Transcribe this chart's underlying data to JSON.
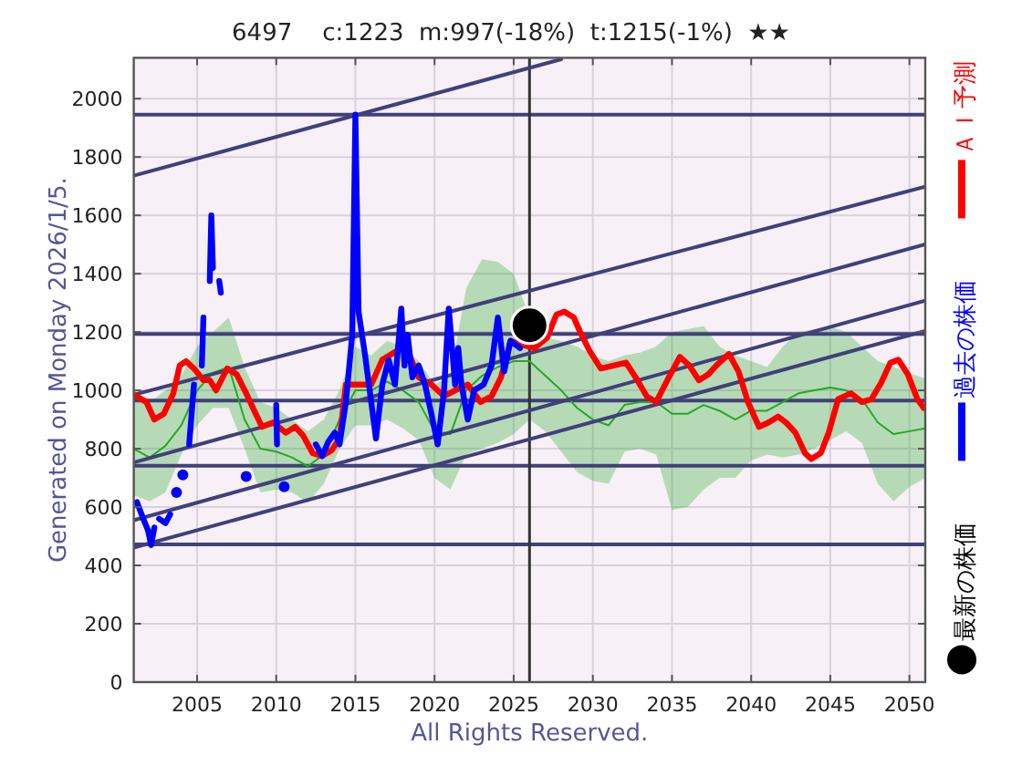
{
  "chart_data": {
    "type": "line",
    "title": "6497    c:1223  m:997(-18%)  t:1215(-1%)  ★★",
    "ylabel": "Generated on Monday 2026/1/5.",
    "annotations": [
      "All Rights Reserved."
    ],
    "xlim": [
      2001,
      2051
    ],
    "xticks": [
      2005,
      2010,
      2015,
      2020,
      2025,
      2030,
      2035,
      2040,
      2045,
      2050
    ],
    "ylim": [
      0,
      2140
    ],
    "yticks": [
      0,
      200,
      400,
      600,
      800,
      1000,
      1200,
      1400,
      1600,
      1800,
      2000
    ],
    "grid": true,
    "legend": "right",
    "ref_lines": [
      {
        "axis": "y",
        "value": 1945,
        "color": "#40407a"
      },
      {
        "axis": "y",
        "value": 1193,
        "color": "#40407a"
      },
      {
        "axis": "y",
        "value": 965,
        "color": "#40407a"
      },
      {
        "axis": "y",
        "value": 742,
        "color": "#40407a"
      },
      {
        "axis": "y",
        "value": 472,
        "color": "#40407a"
      },
      {
        "axis": "x",
        "value": 2026,
        "color": "#333333"
      }
    ],
    "series": [
      {
        "color": "#22aa22",
        "x": [
          2001,
          2002,
          2003,
          2004,
          2005,
          2006,
          2007,
          2008,
          2009,
          2010,
          2011,
          2012,
          2013,
          2014,
          2015,
          2016,
          2017,
          2018,
          2019,
          2020,
          2021,
          2022,
          2023,
          2024,
          2025,
          2026,
          2027,
          2028,
          2029,
          2030,
          2031,
          2032,
          2033,
          2034,
          2035,
          2036,
          2037,
          2038,
          2039,
          2040,
          2041,
          2042,
          2043,
          2044,
          2045,
          2046,
          2047,
          2048,
          2049,
          2050,
          2051
        ],
        "values": [
          800,
          770,
          810,
          880,
          1000,
          1060,
          1080,
          900,
          800,
          790,
          770,
          740,
          780,
          900,
          1000,
          1000,
          1030,
          1000,
          960,
          860,
          850,
          1000,
          1050,
          1080,
          1100,
          1100,
          1050,
          1000,
          940,
          900,
          880,
          950,
          960,
          960,
          920,
          920,
          950,
          930,
          900,
          930,
          930,
          960,
          990,
          1000,
          1010,
          1000,
          970,
          890,
          850,
          860,
          870
        ],
        "lower": [
          640,
          620,
          650,
          780,
          880,
          940,
          940,
          800,
          650,
          660,
          650,
          615,
          680,
          800,
          880,
          880,
          900,
          870,
          830,
          700,
          660,
          780,
          800,
          820,
          850,
          900,
          860,
          790,
          720,
          690,
          680,
          790,
          800,
          780,
          590,
          600,
          660,
          700,
          700,
          760,
          780,
          770,
          780,
          800,
          830,
          860,
          820,
          680,
          620,
          670,
          700
        ],
        "upper": [
          1000,
          960,
          1000,
          1050,
          1150,
          1200,
          1250,
          1080,
          960,
          940,
          900,
          860,
          900,
          1000,
          1150,
          1120,
          1170,
          1150,
          1100,
          1020,
          1050,
          1350,
          1450,
          1440,
          1400,
          1250,
          1180,
          1170,
          1150,
          1120,
          1100,
          1120,
          1130,
          1150,
          1200,
          1210,
          1220,
          1150,
          1120,
          1100,
          1080,
          1150,
          1200,
          1210,
          1220,
          1200,
          1150,
          1100,
          1080,
          1060,
          1040
        ]
      },
      {
        "type": "line",
        "color": "#40407a",
        "x": [
          2001,
          2028
        ],
        "values": [
          1736,
          2135
        ]
      },
      {
        "type": "line",
        "color": "#40407a",
        "x": [
          2001,
          2051
        ],
        "values": [
          985,
          1698
        ]
      },
      {
        "type": "line",
        "color": "#40407a",
        "x": [
          2001,
          2051
        ],
        "values": [
          753,
          1501
        ]
      },
      {
        "type": "line",
        "color": "#40407a",
        "x": [
          2001,
          2051
        ],
        "values": [
          555,
          1308
        ]
      },
      {
        "type": "line",
        "color": "#40407a",
        "x": [
          2001,
          2051
        ],
        "values": [
          461,
          1204
        ]
      },
      {
        "name": "ＡＩ予測",
        "color": "#ff0000",
        "x": [
          2001.0,
          2001.8,
          2002.3,
          2002.9,
          2003.5,
          2003.9,
          2004.3,
          2004.8,
          2005.4,
          2005.8,
          2006.2,
          2006.9,
          2007.5,
          2008.1,
          2008.7,
          2009.1,
          2009.8,
          2010.6,
          2011.2,
          2011.7,
          2012.3,
          2012.9,
          2013.5,
          2014.0,
          2014.4,
          2016.0,
          2016.7,
          2017.9,
          2018.3,
          2019.0,
          2019.8,
          2020.6,
          2021.3,
          2022.1,
          2022.9,
          2023.6,
          2024.2,
          2024.8,
          2025.6,
          2026.3,
          2027.1,
          2027.7,
          2028.2,
          2028.8,
          2029.2,
          2029.8,
          2030.5,
          2031.3,
          2032.1,
          2032.7,
          2033.4,
          2034.0,
          2034.8,
          2035.5,
          2036.1,
          2036.7,
          2037.3,
          2037.8,
          2038.6,
          2039.2,
          2039.8,
          2040.5,
          2041.1,
          2041.7,
          2042.2,
          2042.8,
          2043.4,
          2043.8,
          2044.4,
          2044.9,
          2045.5,
          2046.3,
          2047.0,
          2047.6,
          2048.2,
          2048.8,
          2049.3,
          2049.9,
          2050.5,
          2050.9
        ],
        "values": [
          985,
          960,
          900,
          920,
          990,
          1085,
          1100,
          1075,
          1035,
          1035,
          1000,
          1075,
          1055,
          990,
          920,
          875,
          890,
          855,
          875,
          845,
          785,
          775,
          795,
          835,
          1020,
          1020,
          1105,
          1145,
          1135,
          1045,
          1020,
          980,
          1000,
          1020,
          960,
          980,
          1045,
          1170,
          1155,
          1145,
          1180,
          1260,
          1270,
          1250,
          1200,
          1135,
          1075,
          1085,
          1095,
          1045,
          980,
          960,
          1045,
          1115,
          1085,
          1035,
          1055,
          1085,
          1125,
          1065,
          960,
          875,
          890,
          910,
          890,
          855,
          785,
          765,
          785,
          855,
          970,
          990,
          960,
          970,
          1025,
          1095,
          1105,
          1055,
          970,
          940
        ]
      },
      {
        "type": "scatter",
        "color": "#0000ff",
        "x": [
          2003.7,
          2004.1,
          2008.1,
          2010.5
        ],
        "values": [
          650,
          710,
          705,
          670
        ]
      },
      {
        "name": "過去の株価",
        "color": "#0000ff",
        "x": [
          2001.2,
          2001.6,
          2001.9,
          2002.1,
          2002.3,
          null,
          2002.6,
          2003.0,
          2003.3,
          null,
          2004.5,
          2004.8,
          null,
          2005.3,
          2005.4,
          null,
          2005.8,
          2005.9,
          2006.0,
          null,
          2006.4,
          2006.5,
          null,
          2010.0,
          2010.05,
          null,
          2012.5,
          2012.9,
          2013.3,
          2013.7,
          2014.0,
          2014.4,
          2014.8,
          2015.0,
          2015.2,
          2015.6,
          2016.0,
          2016.3,
          2016.7,
          2017.1,
          2017.5,
          2017.9,
          2018.1,
          2018.3,
          2018.6,
          2019.0,
          2019.4,
          2019.8,
          2020.2,
          2020.6,
          2020.9,
          2021.3,
          2021.5,
          2021.7,
          2022.1,
          2022.5,
          2023.1,
          2023.6,
          2024.0,
          2024.4,
          2024.8,
          2025.4
        ],
        "values": [
          617,
          560,
          520,
          470,
          530,
          null,
          560,
          545,
          575,
          null,
          815,
          1020,
          null,
          1085,
          1250,
          null,
          1375,
          1600,
          1420,
          null,
          1375,
          1335,
          null,
          950,
          815,
          null,
          815,
          775,
          825,
          855,
          815,
          960,
          1190,
          1945,
          1270,
          1125,
          960,
          835,
          1020,
          1105,
          1020,
          1280,
          1085,
          1190,
          1045,
          1085,
          1020,
          920,
          815,
          1000,
          1280,
          1020,
          1145,
          1020,
          900,
          1000,
          1020,
          1085,
          1250,
          1065,
          1170,
          1145
        ]
      },
      {
        "name": "最新の株価",
        "type": "scatter",
        "color": "#000000",
        "x": [
          2026
        ],
        "values": [
          1223
        ]
      }
    ]
  }
}
